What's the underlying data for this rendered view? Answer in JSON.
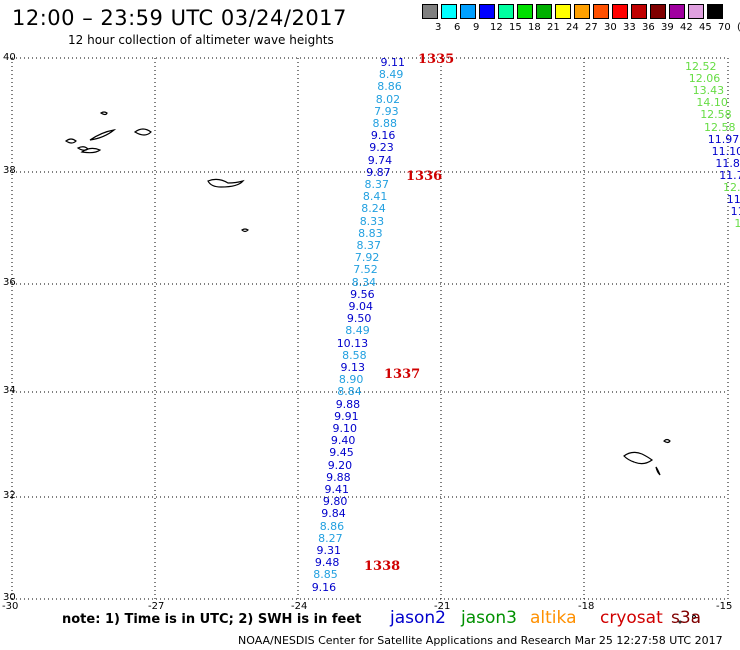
{
  "title": "12:00 – 23:59 UTC 03/24/2017",
  "subtitle": "12 hour collection of altimeter wave heights",
  "colorbar": {
    "colors": [
      "#808080",
      "#00ffff",
      "#00a0ff",
      "#0000ff",
      "#00ffa0",
      "#00e000",
      "#00b000",
      "#ffff00",
      "#ffa000",
      "#ff5000",
      "#ff0000",
      "#c00000",
      "#800000",
      "#a000a0",
      "#e0a0e0",
      "#000000"
    ],
    "labels": [
      "3",
      "6",
      "9",
      "12",
      "15",
      "18",
      "21",
      "24",
      "27",
      "30",
      "33",
      "36",
      "39",
      "42",
      "45",
      "70",
      "(ft)"
    ]
  },
  "axes": {
    "lat_labels": [
      "40",
      "38",
      "36",
      "34",
      "32",
      "30"
    ],
    "lon_labels": [
      "-30",
      "-27",
      "-24",
      "-21",
      "-18",
      "-15"
    ]
  },
  "track_main": [
    {
      "v": "9.11",
      "c": "#0000cc"
    },
    {
      "v": "8.49",
      "c": "#22a0e0"
    },
    {
      "v": "8.86",
      "c": "#22a0e0"
    },
    {
      "v": "8.02",
      "c": "#22a0e0"
    },
    {
      "v": "7.93",
      "c": "#22a0e0"
    },
    {
      "v": "8.88",
      "c": "#22a0e0"
    },
    {
      "v": "9.16",
      "c": "#0000cc"
    },
    {
      "v": "9.23",
      "c": "#0000cc"
    },
    {
      "v": "9.74",
      "c": "#0000cc"
    },
    {
      "v": "9.87",
      "c": "#0000cc"
    },
    {
      "v": "8.37",
      "c": "#22a0e0"
    },
    {
      "v": "8.41",
      "c": "#22a0e0"
    },
    {
      "v": "8.24",
      "c": "#22a0e0"
    },
    {
      "v": "8.33",
      "c": "#22a0e0"
    },
    {
      "v": "8.83",
      "c": "#22a0e0"
    },
    {
      "v": "8.37",
      "c": "#22a0e0"
    },
    {
      "v": "7.92",
      "c": "#22a0e0"
    },
    {
      "v": "7.52",
      "c": "#22a0e0"
    },
    {
      "v": "8.34",
      "c": "#22a0e0"
    },
    {
      "v": "9.56",
      "c": "#0000cc"
    },
    {
      "v": "9.04",
      "c": "#0000cc"
    },
    {
      "v": "9.50",
      "c": "#0000cc"
    },
    {
      "v": "8.49",
      "c": "#22a0e0"
    },
    {
      "v": "10.13",
      "c": "#0000cc"
    },
    {
      "v": "8.58",
      "c": "#22a0e0"
    },
    {
      "v": "9.13",
      "c": "#0000cc"
    },
    {
      "v": "8.90",
      "c": "#22a0e0"
    },
    {
      "v": "8.84",
      "c": "#22a0e0"
    },
    {
      "v": "9.88",
      "c": "#0000cc"
    },
    {
      "v": "9.91",
      "c": "#0000cc"
    },
    {
      "v": "9.10",
      "c": "#0000cc"
    },
    {
      "v": "9.40",
      "c": "#0000cc"
    },
    {
      "v": "9.45",
      "c": "#0000cc"
    },
    {
      "v": "9.20",
      "c": "#0000cc"
    },
    {
      "v": "9.88",
      "c": "#0000cc"
    },
    {
      "v": "9.41",
      "c": "#0000cc"
    },
    {
      "v": "9.80",
      "c": "#0000cc"
    },
    {
      "v": "9.84",
      "c": "#0000cc"
    },
    {
      "v": "8.86",
      "c": "#22a0e0"
    },
    {
      "v": "8.27",
      "c": "#22a0e0"
    },
    {
      "v": "9.31",
      "c": "#0000cc"
    },
    {
      "v": "9.48",
      "c": "#0000cc"
    },
    {
      "v": "8.85",
      "c": "#22a0e0"
    },
    {
      "v": "9.16",
      "c": "#0000cc"
    }
  ],
  "track_right": [
    {
      "v": "12.52",
      "c": "#66dd44"
    },
    {
      "v": "12.06",
      "c": "#66dd44"
    },
    {
      "v": "13.43",
      "c": "#66dd44"
    },
    {
      "v": "14.10",
      "c": "#66dd44"
    },
    {
      "v": "12.58",
      "c": "#66dd44"
    },
    {
      "v": "12.58",
      "c": "#66dd44"
    },
    {
      "v": "11.97",
      "c": "#0000cc"
    },
    {
      "v": "11.10",
      "c": "#0000cc"
    },
    {
      "v": "11.80",
      "c": "#0000cc"
    },
    {
      "v": "11.7",
      "c": "#0000cc"
    },
    {
      "v": "12.",
      "c": "#66dd44"
    },
    {
      "v": "11.",
      "c": "#0000cc"
    },
    {
      "v": "11",
      "c": "#0000cc"
    },
    {
      "v": "1",
      "c": "#66dd44"
    }
  ],
  "orbits": [
    "1335",
    "1336",
    "1337",
    "1338"
  ],
  "note": "note: 1) Time is in UTC; 2) SWH is in feet",
  "satellites": [
    {
      "name": "jason2",
      "color": "#0000cc"
    },
    {
      "name": "jason3",
      "color": "#009000"
    },
    {
      "name": "altika",
      "color": "#ff9000"
    },
    {
      "name": "cryosat",
      "color": "#d00000"
    },
    {
      "name": "s3a",
      "color": "#800000"
    }
  ],
  "footer": "NOAA/NESDIS Center for Satellite Applications and Research    Mar 25 12:27:58 UTC 2017"
}
